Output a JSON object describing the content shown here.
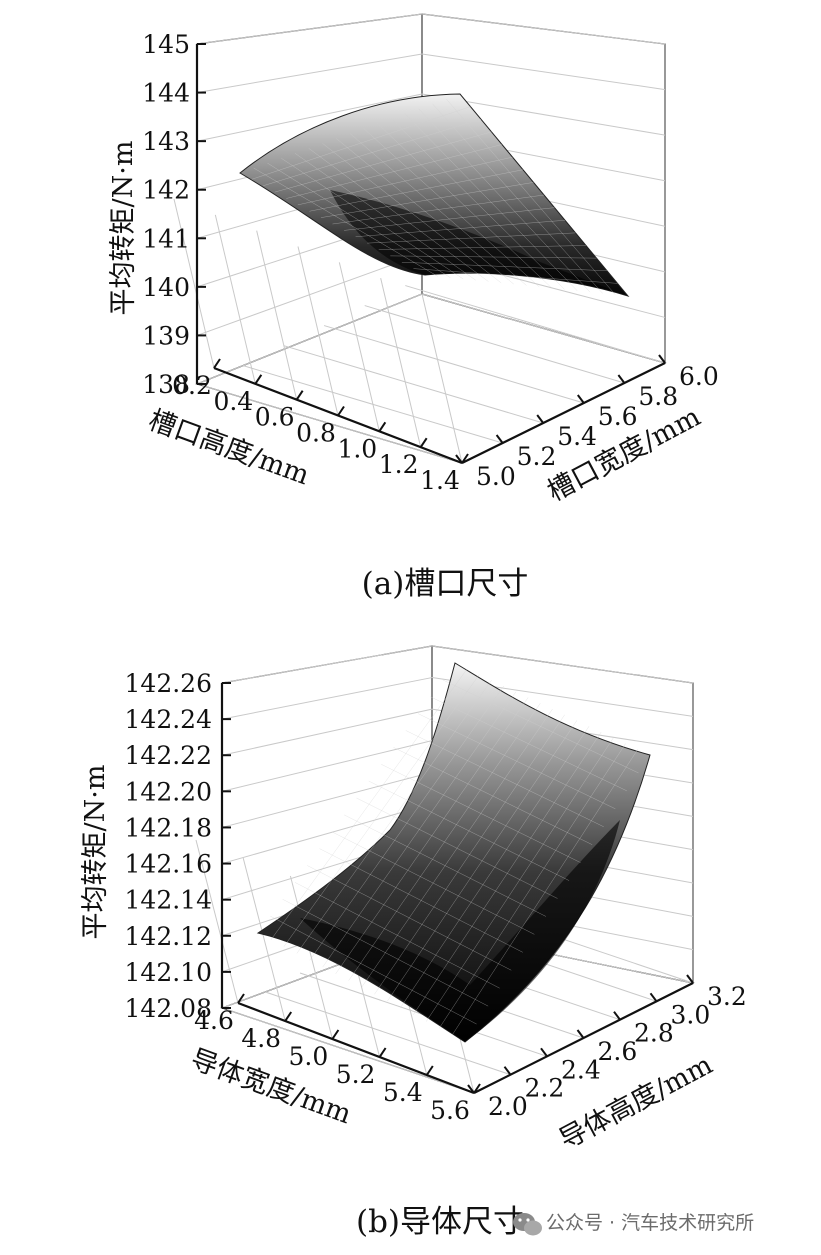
{
  "chart_data": [
    {
      "type": "surface",
      "caption": "(a)槽口尺寸",
      "zlabel": "平均转矩/N·m",
      "xlabel": "槽口高度/mm",
      "ylabel": "槽口宽度/mm",
      "z_ticks": [
        "145",
        "144",
        "143",
        "142",
        "141",
        "140",
        "139",
        "138"
      ],
      "x_ticks": [
        "0.2",
        "0.4",
        "0.6",
        "0.8",
        "1.0",
        "1.2",
        "1.4"
      ],
      "y_ticks": [
        "5.0",
        "5.2",
        "5.4",
        "5.6",
        "5.8",
        "6.0"
      ],
      "zlim": [
        138,
        145
      ],
      "xlim": [
        0.2,
        1.4
      ],
      "ylim": [
        5.0,
        6.0
      ],
      "grid": true,
      "corners": [
        {
          "x": 0.2,
          "y": 5.0,
          "z": 142.7
        },
        {
          "x": 0.2,
          "y": 6.0,
          "z": 144.4
        },
        {
          "x": 1.4,
          "y": 6.0,
          "z": 139.9
        },
        {
          "x": 1.4,
          "y": 5.0,
          "z": 140.9
        }
      ]
    },
    {
      "type": "surface",
      "caption": "(b)导体尺寸",
      "zlabel": "平均转矩/N·m",
      "xlabel": "导体宽度/mm",
      "ylabel": "导体高度/mm",
      "z_ticks": [
        "142.26",
        "142.24",
        "142.22",
        "142.20",
        "142.18",
        "142.16",
        "142.14",
        "142.12",
        "142.10",
        "142.08"
      ],
      "x_ticks": [
        "4.6",
        "4.8",
        "5.0",
        "5.2",
        "5.4",
        "5.6"
      ],
      "y_ticks": [
        "2.0",
        "2.2",
        "2.4",
        "2.6",
        "2.8",
        "3.0",
        "3.2"
      ],
      "zlim": [
        142.08,
        142.26
      ],
      "xlim": [
        4.6,
        5.6
      ],
      "ylim": [
        2.0,
        3.2
      ],
      "grid": true,
      "corners": [
        {
          "x": 4.6,
          "y": 2.0,
          "z": 142.127
        },
        {
          "x": 4.6,
          "y": 3.2,
          "z": 142.26
        },
        {
          "x": 5.6,
          "y": 3.2,
          "z": 142.225
        },
        {
          "x": 5.6,
          "y": 2.0,
          "z": 142.08
        }
      ]
    }
  ],
  "watermark": {
    "text": "公众号 · 汽车技术研究所",
    "icon": "wechat-icon"
  }
}
